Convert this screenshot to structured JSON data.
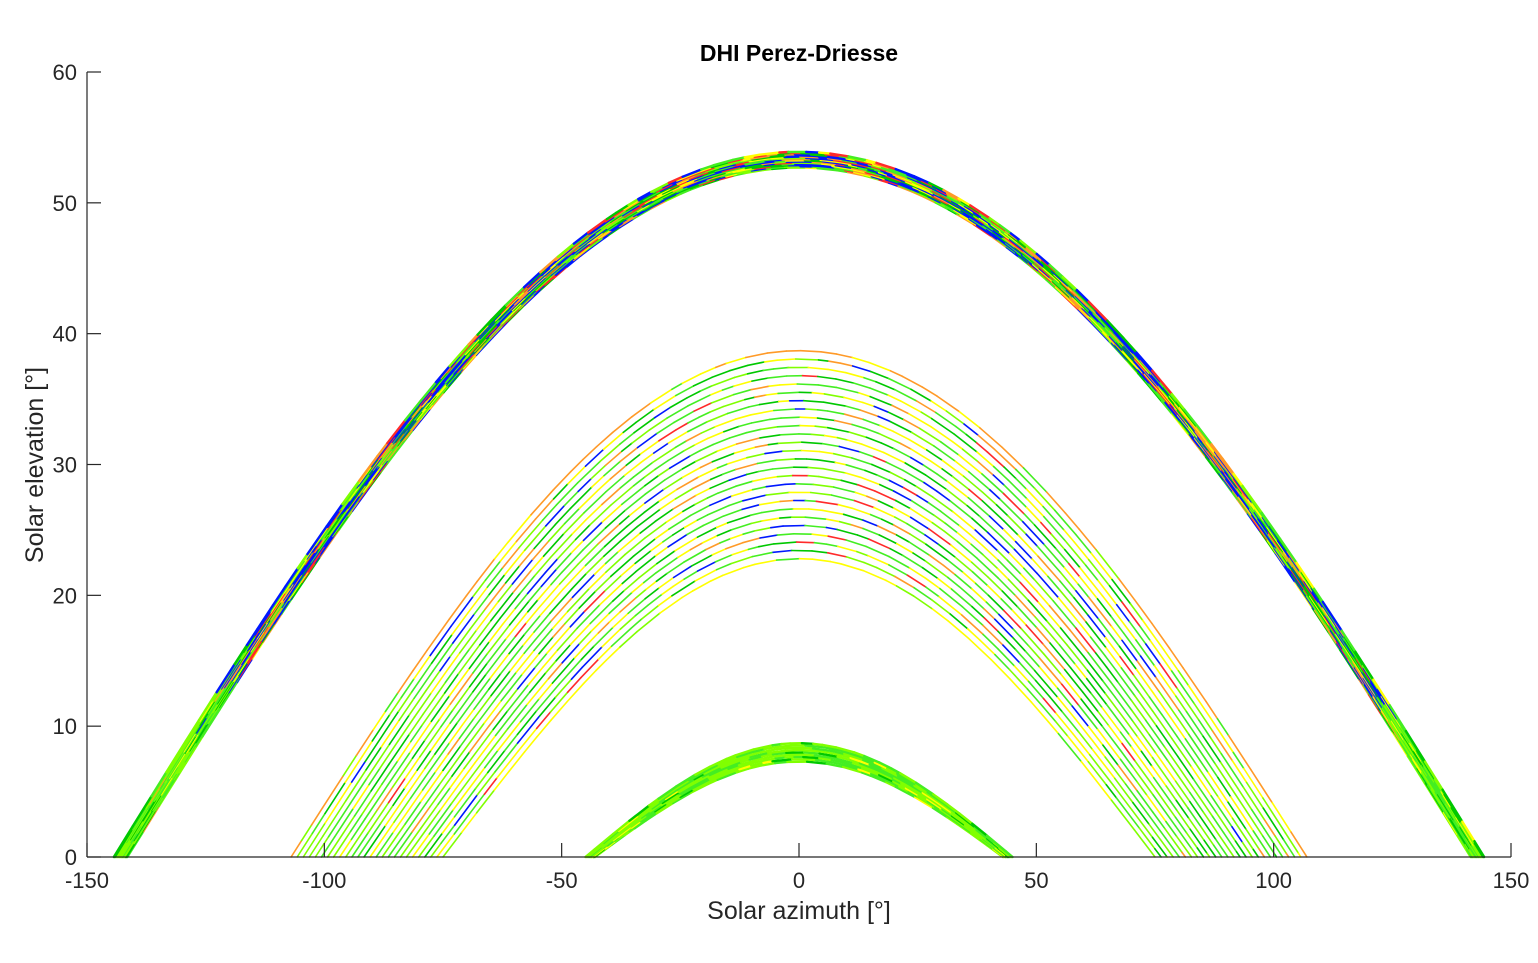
{
  "chart_data": {
    "type": "scatter",
    "title": "DHI Perez-Driesse",
    "xlabel": "Solar azimuth [°]",
    "ylabel": "Solar elevation [°]",
    "xlim": [
      -150,
      150
    ],
    "ylim": [
      0,
      60
    ],
    "xticks": [
      -150,
      -100,
      -50,
      0,
      50,
      100,
      150
    ],
    "yticks": [
      0,
      10,
      20,
      30,
      40,
      50,
      60
    ],
    "grid": false,
    "colormap": [
      "#0018ff",
      "#00c800",
      "#44ee22",
      "#80ff00",
      "#ffff00",
      "#ff9a28",
      "#ff2a2a"
    ],
    "bands": [
      {
        "name": "upper",
        "peak_elevation_min": 52.7,
        "peak_elevation_max": 53.9,
        "azimuth_at_zero_elevation": 143
      },
      {
        "name": "middle",
        "peak_elevation_min": 22.8,
        "peak_elevation_max": 38.7,
        "azimuth_at_zero_elevation_min": 75,
        "azimuth_at_zero_elevation_max": 107
      },
      {
        "name": "lower",
        "peak_elevation_min": 7.3,
        "peak_elevation_max": 8.7,
        "azimuth_at_zero_elevation": 44
      }
    ]
  }
}
